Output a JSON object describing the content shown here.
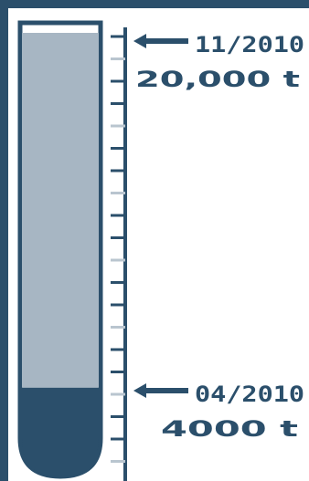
{
  "gauge": {
    "fill_fraction": 0.2,
    "colors": {
      "frame": "#2b4f6b",
      "full": "#a7b6c3",
      "raised": "#2b4f6b",
      "background": "#ffffff",
      "minor_tick": "#b9c5cf"
    }
  },
  "markers": {
    "top": {
      "date": "11/2010",
      "amount": "20,000 t",
      "arrow_icon": "arrow-left-icon"
    },
    "current": {
      "date": "04/2010",
      "amount": "4000 t",
      "arrow_icon": "arrow-left-icon"
    }
  }
}
